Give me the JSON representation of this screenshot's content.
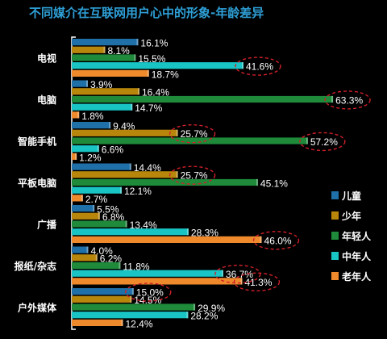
{
  "chart_data": {
    "type": "bar",
    "orientation": "horizontal",
    "title": "不同媒介在互联网用户心中的形象-年龄差异",
    "categories": [
      "电视",
      "电脑",
      "智能手机",
      "平板电脑",
      "广播",
      "报纸/杂志",
      "户外媒体"
    ],
    "series": [
      {
        "name": "儿童",
        "color": "#1f6fa8",
        "values": [
          16.1,
          3.9,
          9.4,
          14.4,
          5.5,
          4.0,
          15.0
        ]
      },
      {
        "name": "少年",
        "color": "#b8860b",
        "values": [
          8.1,
          16.4,
          25.7,
          25.7,
          6.8,
          6.2,
          14.5
        ]
      },
      {
        "name": "年轻人",
        "color": "#1e8a3a",
        "values": [
          15.5,
          63.3,
          57.2,
          45.1,
          13.4,
          11.8,
          29.9
        ]
      },
      {
        "name": "中年人",
        "color": "#18c4c4",
        "values": [
          41.6,
          14.7,
          6.6,
          12.1,
          28.3,
          36.7,
          28.2
        ]
      },
      {
        "name": "老年人",
        "color": "#ef8a2c",
        "values": [
          18.7,
          1.8,
          1.2,
          2.7,
          46.0,
          41.3,
          12.4
        ]
      }
    ],
    "highlighted": [
      {
        "category": "电视",
        "series": "中年人"
      },
      {
        "category": "电脑",
        "series": "年轻人"
      },
      {
        "category": "智能手机",
        "series": "少年"
      },
      {
        "category": "智能手机",
        "series": "年轻人"
      },
      {
        "category": "平板电脑",
        "series": "少年"
      },
      {
        "category": "广播",
        "series": "老年人"
      },
      {
        "category": "报纸/杂志",
        "series": "中年人"
      },
      {
        "category": "报纸/杂志",
        "series": "老年人"
      },
      {
        "category": "户外媒体",
        "series": "儿童"
      }
    ],
    "highlight_color": "#d0202a",
    "value_suffix": "%",
    "legend_position": "right",
    "grid": false,
    "xlim": [
      0,
      65
    ]
  }
}
